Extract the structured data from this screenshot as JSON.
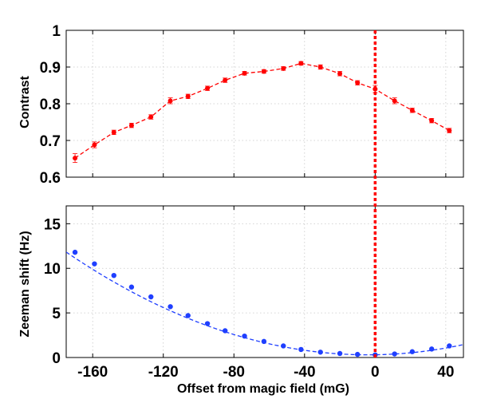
{
  "chart_data": [
    {
      "type": "line",
      "ylabel": "Contrast",
      "xlim": [
        -175,
        50
      ],
      "ylim": [
        0.6,
        1.0
      ],
      "xticks": [
        -160,
        -120,
        -80,
        -40,
        0,
        40
      ],
      "yticks": [
        "0.6",
        "0.7",
        "0.8",
        "0.9",
        "1"
      ],
      "grid": true,
      "series": [
        {
          "color": "#ff0000",
          "style": "dashed line with circle markers and error bars",
          "x": [
            -170,
            -159,
            -148,
            -138,
            -127,
            -116,
            -106,
            -95,
            -85,
            -74,
            -63,
            -52,
            -42,
            -31,
            -20,
            -10,
            0,
            11,
            21,
            32,
            42
          ],
          "y": [
            0.652,
            0.688,
            0.722,
            0.741,
            0.764,
            0.808,
            0.82,
            0.842,
            0.864,
            0.883,
            0.888,
            0.896,
            0.91,
            0.9,
            0.882,
            0.857,
            0.84,
            0.808,
            0.782,
            0.754,
            0.727
          ],
          "err": [
            0.012,
            0.008,
            0.006,
            0.006,
            0.006,
            0.008,
            0.006,
            0.006,
            0.006,
            0.005,
            0.005,
            0.005,
            0.005,
            0.006,
            0.006,
            0.006,
            0.01,
            0.008,
            0.006,
            0.006,
            0.006
          ]
        }
      ]
    },
    {
      "type": "scatter",
      "xlabel": "Offset from magic field (mG)",
      "ylabel": "Zeeman shift (Hz)",
      "xlim": [
        -175,
        50
      ],
      "ylim": [
        0,
        17
      ],
      "xticks": [
        "-160",
        "-120",
        "-80",
        "-40",
        "0",
        "40"
      ],
      "yticks": [
        "0",
        "5",
        "10",
        "15"
      ],
      "grid": true,
      "series": [
        {
          "color": "#1f3fff",
          "style": "circle markers with dashed quadratic fit",
          "x": [
            -170,
            -159,
            -148,
            -138,
            -127,
            -116,
            -106,
            -95,
            -85,
            -74,
            -63,
            -52,
            -42,
            -31,
            -20,
            -10,
            0,
            11,
            21,
            32,
            42
          ],
          "y": [
            11.8,
            10.5,
            9.2,
            7.9,
            6.8,
            5.7,
            4.7,
            3.8,
            3.0,
            2.4,
            1.8,
            1.3,
            0.9,
            0.6,
            0.45,
            0.35,
            0.3,
            0.4,
            0.65,
            0.95,
            1.3
          ]
        }
      ],
      "fit": {
        "color": "#1f3fff",
        "vertex_x": -4,
        "vertex_y": 0.3,
        "curvature": 0.000394
      }
    }
  ],
  "marker_line": {
    "x": 0,
    "color": "#ff0000"
  }
}
